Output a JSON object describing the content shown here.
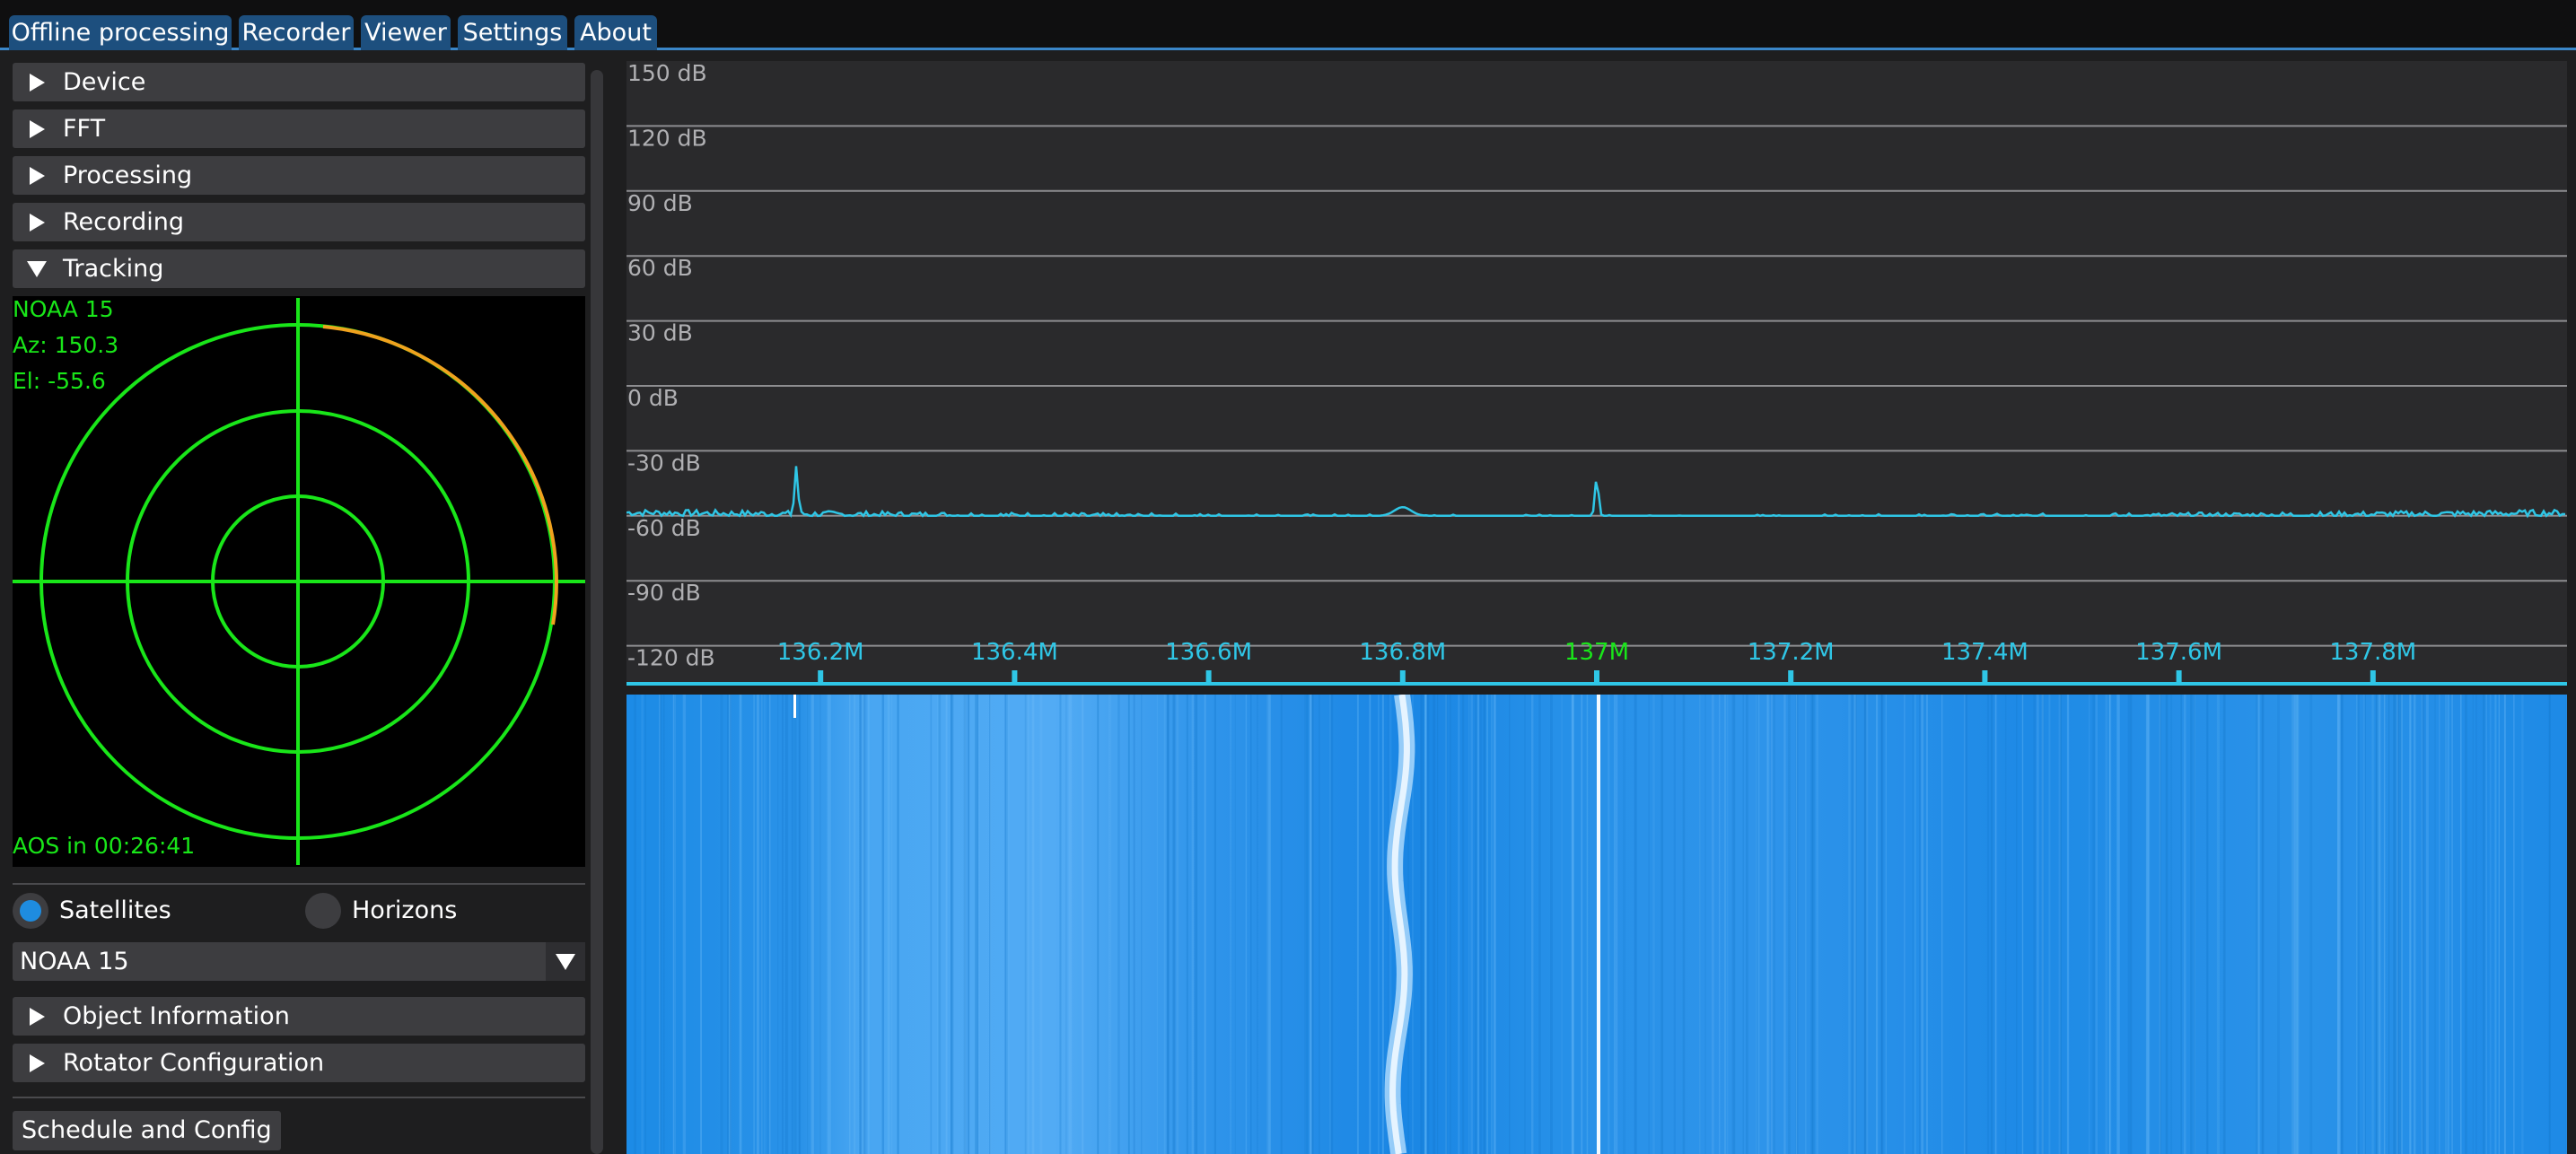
{
  "tabs": [
    "Offline processing",
    "Recorder",
    "Viewer",
    "Settings",
    "About"
  ],
  "sections": {
    "device": "Device",
    "fft": "FFT",
    "processing": "Processing",
    "recording": "Recording",
    "tracking": "Tracking",
    "object_information": "Object Information",
    "rotator_configuration": "Rotator Configuration"
  },
  "tracking": {
    "satellite_name": "NOAA 15",
    "azimuth": "Az: 150.3",
    "elevation": "El: -55.6",
    "aos": "AOS in 00:26:41",
    "mode_options": [
      "Satellites",
      "Horizons"
    ],
    "selected_mode": "Satellites",
    "selected_object": "NOAA 15",
    "schedule_button": "Schedule and Config"
  },
  "colors": {
    "polar_plot": "#19e619",
    "sat_track": "#f0a21e",
    "accent": "#1e8ce0",
    "tab_bg": "#1d4f7e",
    "spectrum_line": "#2fc6e6",
    "freq_label": "#2fc6e6",
    "center_freq_label": "#19e619"
  },
  "spectrum": {
    "db_labels": [
      "150 dB",
      "120 dB",
      "90 dB",
      "60 dB",
      "30 dB",
      "0 dB",
      "-30 dB",
      "-60 dB",
      "-90 dB",
      "-120 dB"
    ],
    "db_ticks": [
      150,
      120,
      90,
      60,
      30,
      0,
      -30,
      -60,
      -90,
      -120
    ],
    "freq_labels": [
      "136.2M",
      "136.4M",
      "136.6M",
      "136.8M",
      "137M",
      "137.2M",
      "137.4M",
      "137.6M",
      "137.8M"
    ],
    "freq_ticks_mhz": [
      136.2,
      136.4,
      136.6,
      136.8,
      137.0,
      137.2,
      137.4,
      137.6,
      137.8
    ],
    "center_freq_label": "137M",
    "freq_range_mhz": [
      136.0,
      138.0
    ],
    "noise_floor_db": -60,
    "peaks": [
      {
        "freq_mhz": 136.175,
        "level_db": -37
      },
      {
        "freq_mhz": 136.8,
        "level_db": -56
      },
      {
        "freq_mhz": 137.0,
        "level_db": -42
      }
    ]
  }
}
